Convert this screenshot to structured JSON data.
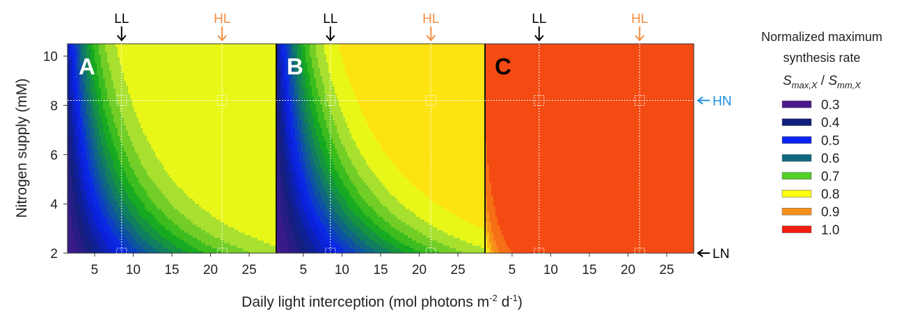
{
  "chart_data": {
    "type": "heatmap",
    "title": "",
    "xlabel": "Daily light interception (mol photons m",
    "xlabel_sup1": "-2",
    "xlabel_mid": " d",
    "xlabel_sup2": "-1",
    "xlabel_end": ")",
    "ylabel": "Nitrogen supply (mM)",
    "xlim": [
      1.5,
      28.5
    ],
    "ylim": [
      2,
      10.5
    ],
    "xticks": [
      5,
      10,
      15,
      20,
      25
    ],
    "yticks": [
      2,
      4,
      6,
      8,
      10
    ],
    "grid": false,
    "legend_placement": "right",
    "reference_lines": {
      "x": [
        {
          "label": "LL",
          "value": 8.5,
          "color": "#000000"
        },
        {
          "label": "HL",
          "value": 21.5,
          "color": "#F28E41"
        }
      ],
      "y": [
        {
          "label": "HN",
          "value": 8.2,
          "color": "#1F8FE0"
        },
        {
          "label": "LN",
          "value": 2.0,
          "color": "#000000"
        }
      ]
    },
    "panels": [
      {
        "label": "A",
        "model": {
          "k": 0.025,
          "p": 1.35,
          "base": 0.3,
          "top": 0.84,
          "noff": 0.8
        }
      },
      {
        "label": "B",
        "model": {
          "k": 0.022,
          "p": 1.4,
          "base": 0.3,
          "top": 0.86,
          "noff": 0.8
        }
      },
      {
        "label": "C",
        "model": {
          "k": 0.5,
          "p": 0.7,
          "base": 0.3,
          "top": 0.985,
          "noff": 0.2
        }
      }
    ],
    "legend": {
      "title_line1": "Normalized maximum",
      "title_line2": "synthesis rate",
      "formula_a": "S",
      "formula_a_sub": "max,X",
      "formula_sep": " / ",
      "formula_b": "S",
      "formula_b_sub": "mm,X",
      "entries": [
        {
          "label": "0.3",
          "color": "#4A1A8C"
        },
        {
          "label": "0.4",
          "color": "#101F7E"
        },
        {
          "label": "0.5",
          "color": "#0A22F0"
        },
        {
          "label": "0.6",
          "color": "#106880"
        },
        {
          "label": "0.7",
          "color": "#53D02A"
        },
        {
          "label": "0.8",
          "color": "#FFFF10"
        },
        {
          "label": "0.9",
          "color": "#F79018"
        },
        {
          "label": "1.0",
          "color": "#F21D10"
        }
      ]
    },
    "colorscale": [
      {
        "v": 0.3,
        "color": "#4A1A8C"
      },
      {
        "v": 0.4,
        "color": "#101F7E"
      },
      {
        "v": 0.5,
        "color": "#0A22F0"
      },
      {
        "v": 0.6,
        "color": "#106880"
      },
      {
        "v": 0.7,
        "color": "#18B018"
      },
      {
        "v": 0.78,
        "color": "#A8E030"
      },
      {
        "v": 0.82,
        "color": "#FFFF10"
      },
      {
        "v": 0.9,
        "color": "#F79018"
      },
      {
        "v": 1.0,
        "color": "#F21D10"
      }
    ],
    "levels": 24
  }
}
